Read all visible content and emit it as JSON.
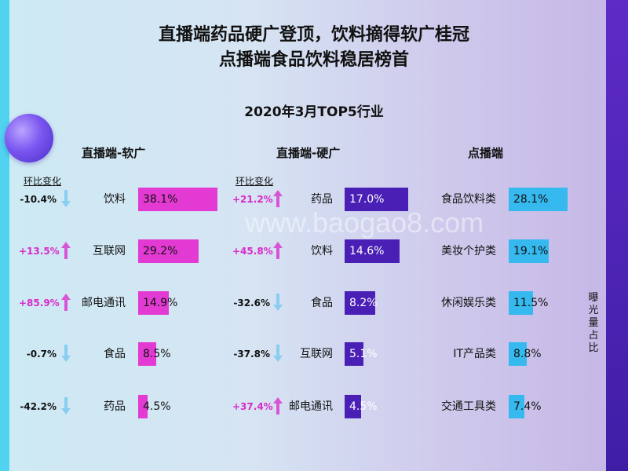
{
  "title_line1": "直播端药品硬广登顶，饮料摘得软广桂冠",
  "title_line2": "点播端食品饮料稳居榜首",
  "subtitle": "2020年3月TOP5行业",
  "change_header": "环比变化",
  "side_label": "曝光量占比",
  "watermark": "www.baogao8.com",
  "colors": {
    "soft_bar": "#e23ad2",
    "hard_bar": "#4a1fb5",
    "vod_bar": "#35b9ee",
    "up_text": "#d82ac9",
    "down_text": "#111111",
    "up_arrow": "#d83bd0",
    "down_arrow": "#7dc9ee"
  },
  "chart_data": [
    {
      "type": "bar",
      "orientation": "horizontal",
      "title": "直播端-软广",
      "categories": [
        "饮料",
        "互联网",
        "邮电通讯",
        "食品",
        "药品"
      ],
      "values": [
        38.1,
        29.2,
        14.9,
        8.5,
        4.5
      ],
      "labels": [
        "38.1%",
        "29.2%",
        "14.9%",
        "8.5%",
        "4.5%"
      ],
      "changes": [
        "-10.4%",
        "+13.5%",
        "+85.9%",
        "-0.7%",
        "-42.2%"
      ],
      "change_dir": [
        "down",
        "up",
        "up",
        "down",
        "down"
      ]
    },
    {
      "type": "bar",
      "orientation": "horizontal",
      "title": "直播端-硬广",
      "categories": [
        "药品",
        "饮料",
        "食品",
        "互联网",
        "邮电通讯"
      ],
      "values": [
        17.0,
        14.6,
        8.2,
        5.1,
        4.5
      ],
      "labels": [
        "17.0%",
        "14.6%",
        "8.2%",
        "5.1%",
        "4.5%"
      ],
      "changes": [
        "+21.2%",
        "+45.8%",
        "-32.6%",
        "-37.8%",
        "+37.4%"
      ],
      "change_dir": [
        "up",
        "up",
        "down",
        "down",
        "up"
      ]
    },
    {
      "type": "bar",
      "orientation": "horizontal",
      "title": "点播端",
      "categories": [
        "食品饮料类",
        "美妆个护类",
        "休闲娱乐类",
        "IT产品类",
        "交通工具类"
      ],
      "values": [
        28.1,
        19.1,
        11.5,
        8.8,
        7.4
      ],
      "labels": [
        "28.1%",
        "19.1%",
        "11.5%",
        "8.8%",
        "7.4%"
      ],
      "changes": [],
      "change_dir": []
    }
  ]
}
